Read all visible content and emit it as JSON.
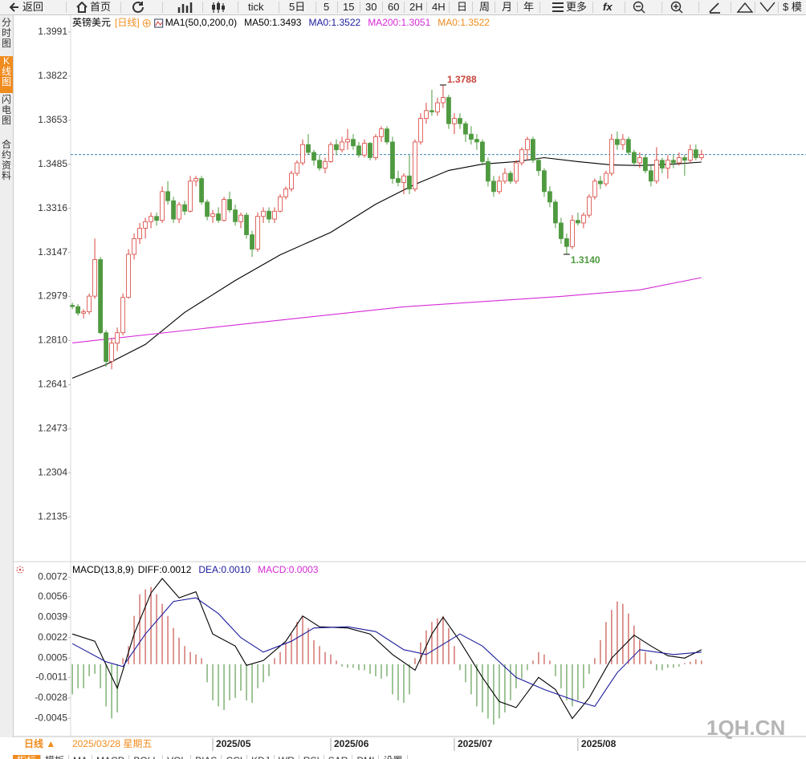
{
  "toolbar": {
    "items": [
      "返回",
      "首页",
      "tick",
      "5日",
      "5",
      "15",
      "30",
      "60",
      "2H",
      "4H",
      "日",
      "周",
      "月",
      "年",
      "更多",
      "fx",
      "$ 模"
    ]
  },
  "sidebar": {
    "tabs": [
      "分时图",
      "K线图",
      "闪电图",
      "合约资料"
    ],
    "active": 1
  },
  "chart_data": [
    {
      "type": "candlestick",
      "title": "英镑美元",
      "subtitle": "[日线]",
      "subtitle_color": "#f08c1e",
      "legend": [
        {
          "text": "MA1(50,0,200,0)",
          "color": "#000000"
        },
        {
          "text": "MA50:1.3493",
          "color": "#000000"
        },
        {
          "text": "MA0:1.3522",
          "color": "#1a1a9c"
        },
        {
          "text": "MA200:1.3051",
          "color": "#d62ad6"
        },
        {
          "text": "MA0:1.3522",
          "color": "#f08c1e"
        }
      ],
      "ohlc": [
        [
          1.2945,
          1.2955,
          1.293,
          1.294
        ],
        [
          1.294,
          1.295,
          1.2905,
          1.2915
        ],
        [
          1.2915,
          1.293,
          1.2895,
          1.292
        ],
        [
          1.292,
          1.299,
          1.291,
          1.298
        ],
        [
          1.298,
          1.32,
          1.297,
          1.312
        ],
        [
          1.312,
          1.313,
          1.2835,
          1.284
        ],
        [
          1.284,
          1.285,
          1.271,
          1.273
        ],
        [
          1.273,
          1.282,
          1.27,
          1.28
        ],
        [
          1.28,
          1.286,
          1.277,
          1.284
        ],
        [
          1.284,
          1.299,
          1.283,
          1.2975
        ],
        [
          1.2975,
          1.316,
          1.297,
          1.314
        ],
        [
          1.314,
          1.322,
          1.312,
          1.32
        ],
        [
          1.32,
          1.326,
          1.318,
          1.324
        ],
        [
          1.324,
          1.328,
          1.32,
          1.3265
        ],
        [
          1.3265,
          1.33,
          1.324,
          1.3285
        ],
        [
          1.3285,
          1.33,
          1.325,
          1.327
        ],
        [
          1.327,
          1.34,
          1.326,
          1.338
        ],
        [
          1.338,
          1.342,
          1.333,
          1.3345
        ],
        [
          1.3345,
          1.336,
          1.326,
          1.3275
        ],
        [
          1.3275,
          1.334,
          1.326,
          1.333
        ],
        [
          1.333,
          1.3345,
          1.329,
          1.3305
        ],
        [
          1.3305,
          1.344,
          1.33,
          1.342
        ],
        [
          1.342,
          1.344,
          1.34,
          1.343
        ],
        [
          1.343,
          1.344,
          1.333,
          1.334
        ],
        [
          1.334,
          1.335,
          1.327,
          1.3285
        ],
        [
          1.3285,
          1.331,
          1.326,
          1.3295
        ],
        [
          1.3295,
          1.332,
          1.326,
          1.327
        ],
        [
          1.327,
          1.336,
          1.3265,
          1.335
        ],
        [
          1.335,
          1.338,
          1.33,
          1.331
        ],
        [
          1.331,
          1.333,
          1.325,
          1.3265
        ],
        [
          1.3265,
          1.33,
          1.324,
          1.329
        ],
        [
          1.329,
          1.33,
          1.32,
          1.3215
        ],
        [
          1.3215,
          1.323,
          1.313,
          1.316
        ],
        [
          1.316,
          1.33,
          1.315,
          1.3285
        ],
        [
          1.3285,
          1.332,
          1.326,
          1.3305
        ],
        [
          1.3305,
          1.332,
          1.326,
          1.3275
        ],
        [
          1.3275,
          1.332,
          1.326,
          1.3305
        ],
        [
          1.3305,
          1.337,
          1.33,
          1.336
        ],
        [
          1.336,
          1.34,
          1.335,
          1.339
        ],
        [
          1.339,
          1.346,
          1.338,
          1.345
        ],
        [
          1.345,
          1.35,
          1.344,
          1.349
        ],
        [
          1.349,
          1.358,
          1.348,
          1.356
        ],
        [
          1.356,
          1.36,
          1.352,
          1.353
        ],
        [
          1.353,
          1.354,
          1.348,
          1.35
        ],
        [
          1.35,
          1.352,
          1.346,
          1.347
        ],
        [
          1.347,
          1.351,
          1.345,
          1.3495
        ],
        [
          1.3495,
          1.357,
          1.349,
          1.356
        ],
        [
          1.356,
          1.358,
          1.352,
          1.354
        ],
        [
          1.354,
          1.359,
          1.353,
          1.357
        ],
        [
          1.357,
          1.362,
          1.354,
          1.358
        ],
        [
          1.358,
          1.36,
          1.354,
          1.3555
        ],
        [
          1.3555,
          1.357,
          1.351,
          1.352
        ],
        [
          1.352,
          1.358,
          1.351,
          1.3565
        ],
        [
          1.3565,
          1.357,
          1.35,
          1.351
        ],
        [
          1.351,
          1.36,
          1.35,
          1.359
        ],
        [
          1.359,
          1.363,
          1.357,
          1.362
        ],
        [
          1.362,
          1.363,
          1.356,
          1.357
        ],
        [
          1.357,
          1.359,
          1.341,
          1.343
        ],
        [
          1.343,
          1.346,
          1.34,
          1.3415
        ],
        [
          1.3415,
          1.345,
          1.337,
          1.344
        ],
        [
          1.344,
          1.352,
          1.337,
          1.339
        ],
        [
          1.339,
          1.358,
          1.338,
          1.357
        ],
        [
          1.357,
          1.368,
          1.356,
          1.366
        ],
        [
          1.366,
          1.372,
          1.364,
          1.369
        ],
        [
          1.369,
          1.377,
          1.367,
          1.3685
        ],
        [
          1.3685,
          1.374,
          1.367,
          1.372
        ],
        [
          1.372,
          1.3788,
          1.37,
          1.374
        ],
        [
          1.374,
          1.375,
          1.362,
          1.364
        ],
        [
          1.364,
          1.368,
          1.36,
          1.366
        ],
        [
          1.366,
          1.368,
          1.362,
          1.364
        ],
        [
          1.364,
          1.365,
          1.357,
          1.36
        ],
        [
          1.36,
          1.363,
          1.356,
          1.358
        ],
        [
          1.358,
          1.36,
          1.354,
          1.357
        ],
        [
          1.357,
          1.358,
          1.348,
          1.3495
        ],
        [
          1.3495,
          1.351,
          1.34,
          1.342
        ],
        [
          1.342,
          1.344,
          1.336,
          1.338
        ],
        [
          1.338,
          1.344,
          1.337,
          1.342
        ],
        [
          1.342,
          1.347,
          1.341,
          1.345
        ],
        [
          1.345,
          1.346,
          1.341,
          1.342
        ],
        [
          1.342,
          1.35,
          1.341,
          1.349
        ],
        [
          1.349,
          1.355,
          1.348,
          1.354
        ],
        [
          1.354,
          1.359,
          1.35,
          1.358
        ],
        [
          1.358,
          1.359,
          1.349,
          1.35
        ],
        [
          1.35,
          1.351,
          1.344,
          1.346
        ],
        [
          1.346,
          1.347,
          1.336,
          1.338
        ],
        [
          1.338,
          1.34,
          1.332,
          1.334
        ],
        [
          1.334,
          1.335,
          1.324,
          1.326
        ],
        [
          1.326,
          1.328,
          1.318,
          1.32
        ],
        [
          1.32,
          1.322,
          1.314,
          1.317
        ],
        [
          1.317,
          1.329,
          1.316,
          1.327
        ],
        [
          1.327,
          1.33,
          1.325,
          1.326
        ],
        [
          1.326,
          1.33,
          1.324,
          1.329
        ],
        [
          1.329,
          1.337,
          1.328,
          1.336
        ],
        [
          1.336,
          1.343,
          1.335,
          1.342
        ],
        [
          1.342,
          1.344,
          1.339,
          1.341
        ],
        [
          1.341,
          1.346,
          1.34,
          1.345
        ],
        [
          1.345,
          1.36,
          1.344,
          1.358
        ],
        [
          1.358,
          1.361,
          1.354,
          1.356
        ],
        [
          1.356,
          1.36,
          1.354,
          1.358
        ],
        [
          1.358,
          1.359,
          1.352,
          1.353
        ],
        [
          1.353,
          1.354,
          1.348,
          1.349
        ],
        [
          1.349,
          1.353,
          1.347,
          1.351
        ],
        [
          1.351,
          1.352,
          1.345,
          1.346
        ],
        [
          1.346,
          1.348,
          1.34,
          1.342
        ],
        [
          1.342,
          1.355,
          1.341,
          1.35
        ],
        [
          1.35,
          1.351,
          1.345,
          1.347
        ],
        [
          1.347,
          1.352,
          1.343,
          1.35
        ],
        [
          1.35,
          1.352,
          1.347,
          1.349
        ],
        [
          1.349,
          1.353,
          1.348,
          1.351
        ],
        [
          1.351,
          1.352,
          1.344,
          1.35
        ],
        [
          1.35,
          1.356,
          1.349,
          1.354
        ],
        [
          1.354,
          1.356,
          1.35,
          1.351
        ],
        [
          1.351,
          1.354,
          1.35,
          1.3522
        ]
      ],
      "up_color": "#d8443c",
      "down_color": "#4f9a40",
      "hollow_up": true,
      "lines": [
        {
          "color": "#000000",
          "x": [
            0,
            6,
            13,
            20,
            29,
            37,
            46,
            54,
            61,
            67,
            73,
            79,
            84,
            90,
            96,
            101,
            107,
            112
          ],
          "values": [
            1.2666,
            1.2718,
            1.2795,
            1.2918,
            1.304,
            1.3138,
            1.3224,
            1.3332,
            1.3408,
            1.3461,
            1.3485,
            1.3495,
            1.351,
            1.3495,
            1.3482,
            1.348,
            1.3485,
            1.3493
          ]
        },
        {
          "color": "#d62ad6",
          "x": [
            0,
            30,
            59,
            87,
            101,
            112
          ],
          "values": [
            1.2801,
            1.2872,
            1.2939,
            1.2979,
            1.3004,
            1.3051
          ]
        }
      ],
      "last_price": 1.3522,
      "last_price_color": "#3b82b0",
      "annotations": [
        {
          "index": 66,
          "value": 1.3788,
          "color": "#c9453c",
          "position": "above"
        },
        {
          "index": 88,
          "value": 1.314,
          "label": "1.3140",
          "color": "#4f9a40",
          "position": "below"
        }
      ],
      "xlim": [
        -0.3,
        130.6
      ],
      "ylim": [
        1.1964,
        1.4058
      ],
      "yticks": [
        1.3991,
        1.3822,
        1.3653,
        1.3485,
        1.3316,
        1.3147,
        1.2979,
        {
          "value": 1.281,
          "label": "1.2810"
        },
        1.2641,
        1.2473,
        1.2304,
        1.2135
      ],
      "xticks": [
        {
          "value": 25,
          "label": "2025/05"
        },
        {
          "value": 46,
          "label": "2025/06"
        },
        {
          "value": 68,
          "label": "2025/07"
        },
        {
          "value": 90,
          "label": "2025/08"
        }
      ],
      "grid": false
    },
    {
      "type": "macd",
      "title": "MACD(13,8,9)",
      "legend": [
        {
          "text": "DIFF:0.0012",
          "color": "#000000"
        },
        {
          "text": "DEA:0.0010",
          "color": "#1a1a9c"
        },
        {
          "text": "MACD:0.0003",
          "color": "#d62ad6"
        }
      ],
      "histogram": [
        -0.0025,
        -0.002,
        -0.002,
        -0.001,
        -0.0008,
        -0.002,
        -0.0035,
        -0.0045,
        -0.004,
        0.0005,
        0.0015,
        0.004,
        0.0058,
        0.0062,
        0.0064,
        0.0058,
        0.005,
        0.004,
        0.003,
        0.0022,
        0.0015,
        0.001,
        0.0008,
        0.0005,
        -0.0015,
        -0.003,
        -0.0035,
        -0.0038,
        -0.003,
        -0.0028,
        -0.0022,
        -0.003,
        -0.0032,
        -0.002,
        -0.0015,
        -0.001,
        0.0005,
        0.001,
        0.0018,
        0.0025,
        0.0035,
        0.004,
        0.003,
        0.002,
        0.0015,
        0.001,
        0.0008,
        0.0003,
        -0.0002,
        -0.0003,
        -0.0003,
        -0.0005,
        -0.0005,
        -0.0008,
        -0.001,
        -0.0012,
        -0.001,
        -0.0025,
        -0.003,
        -0.0032,
        -0.0025,
        0.0005,
        0.0018,
        0.0028,
        0.0035,
        0.0038,
        0.004,
        0.003,
        0.0015,
        -0.0005,
        -0.0015,
        -0.0025,
        -0.0035,
        -0.004,
        -0.0045,
        -0.005,
        -0.0045,
        -0.004,
        -0.003,
        -0.002,
        -0.0012,
        -0.0005,
        0.0003,
        0.001,
        0.0008,
        0.0003,
        -0.001,
        -0.002,
        -0.003,
        -0.0035,
        -0.003,
        -0.002,
        -0.0008,
        0.0005,
        0.002,
        0.0035,
        0.0045,
        0.0052,
        0.005,
        0.0042,
        0.0032,
        0.002,
        0.001,
        0.0003,
        -0.0005,
        -0.0005,
        -0.0003,
        -0.0003,
        -0.0002,
        0.0001,
        0.0002,
        0.0004,
        0.0003
      ],
      "up_color": "#c8524a",
      "down_color": "#5f9e52",
      "lines": [
        {
          "color": "#000000",
          "x": [
            0,
            4,
            8,
            11,
            14,
            16,
            19,
            22,
            25,
            29,
            31,
            34,
            38,
            41,
            44,
            49,
            53,
            57,
            61,
            64,
            66,
            69,
            73,
            76,
            79,
            83,
            86,
            89,
            92,
            96,
            100,
            103,
            106,
            109,
            112
          ],
          "values": [
            0.0025,
            0.0019,
            -0.002,
            0.0025,
            0.0059,
            0.0071,
            0.0055,
            0.006,
            0.0025,
            0.0015,
            -0.0001,
            0.0003,
            0.0019,
            0.004,
            0.0031,
            0.003,
            0.0025,
            0.0008,
            -0.0005,
            0.0025,
            0.0039,
            0.0019,
            -0.0011,
            -0.0031,
            -0.0036,
            -0.0011,
            -0.0021,
            -0.0045,
            -0.0028,
            0.0005,
            0.0024,
            0.0015,
            0.0007,
            0.0005,
            0.0012
          ]
        },
        {
          "color": "#1a1a9c",
          "x": [
            0,
            6,
            9,
            13,
            18,
            22,
            26,
            30,
            34,
            39,
            43,
            49,
            54,
            59,
            63,
            69,
            73,
            79,
            84,
            90,
            93,
            97,
            101,
            107,
            112
          ],
          "values": [
            0.0017,
            0.0002,
            -0.0002,
            0.0025,
            0.0052,
            0.0055,
            0.0042,
            0.0022,
            0.001,
            0.0019,
            0.003,
            0.0031,
            0.0027,
            0.0012,
            0.0008,
            0.0025,
            0.0015,
            -0.0011,
            -0.0021,
            -0.0031,
            -0.0035,
            -0.0007,
            0.0012,
            0.0008,
            0.001
          ]
        }
      ],
      "xlim": [
        -0.3,
        130.6
      ],
      "ylim": [
        -0.0056,
        0.0085
      ],
      "yticks": [
        0.0072,
        0.0056,
        0.0039,
        0.0022,
        0.0005,
        -0.0011,
        -0.0028,
        -0.0045
      ],
      "grid": false
    }
  ],
  "footer": {
    "period": "日线 ▲",
    "cursor_date": "2025/03/28 星期五",
    "tabs": [
      "指标",
      "模板",
      "MA",
      "MACD",
      "BOLL",
      "VOL",
      "BIAS",
      "CCI",
      "KDJ",
      "WR",
      "RSI",
      "SAR",
      "DMI",
      "设置"
    ],
    "active": 0
  },
  "watermark": "1QH.CN"
}
